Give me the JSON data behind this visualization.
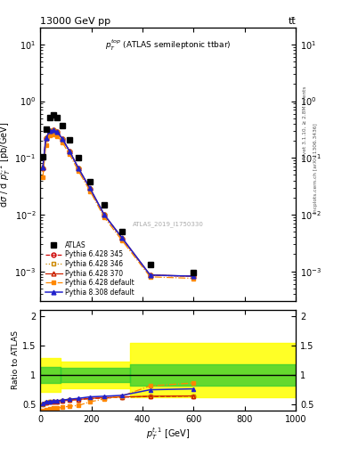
{
  "title_left": "13000 GeV pp",
  "title_right": "tt̅",
  "inner_title": "$p_T^{top}$ (ATLAS semileptonic ttbar)",
  "watermark": "ATLAS_2019_I1750330",
  "right_label_top": "Rivet 3.1.10, ≥ 2.8M events",
  "right_label_bot": "mcplots.cern.ch [arXiv:1306.3436]",
  "ylabel_main": "dσ / d $p_T^{t,1}$ [pb/GeV]",
  "ylabel_ratio": "Ratio to ATLAS",
  "xlabel": "$p_T^{t,1}$ [GeV]",
  "ylim_main_lo": 0.0003,
  "ylim_main_hi": 20,
  "xlim_lo": 0,
  "xlim_hi": 1000,
  "ylim_ratio_lo": 0.4,
  "ylim_ratio_hi": 2.1,
  "atlas_x": [
    10,
    22,
    37,
    52,
    67,
    87,
    115,
    150,
    195,
    250,
    320,
    430,
    600
  ],
  "atlas_y": [
    0.105,
    0.32,
    0.52,
    0.58,
    0.52,
    0.37,
    0.21,
    0.1,
    0.038,
    0.015,
    0.005,
    0.0013,
    0.00095
  ],
  "py6_345_x": [
    10,
    22,
    37,
    52,
    67,
    87,
    115,
    150,
    195,
    250,
    320,
    430,
    600
  ],
  "py6_345_y": [
    0.065,
    0.22,
    0.3,
    0.305,
    0.285,
    0.215,
    0.13,
    0.065,
    0.028,
    0.01,
    0.0038,
    0.00085,
    0.00082
  ],
  "py6_346_y": [
    0.065,
    0.22,
    0.3,
    0.305,
    0.285,
    0.215,
    0.13,
    0.065,
    0.028,
    0.01,
    0.0038,
    0.00085,
    0.00082
  ],
  "py6_370_y": [
    0.068,
    0.22,
    0.3,
    0.305,
    0.285,
    0.215,
    0.13,
    0.065,
    0.029,
    0.01,
    0.0039,
    0.00086,
    0.00082
  ],
  "py6_def_y": [
    0.045,
    0.17,
    0.245,
    0.255,
    0.24,
    0.185,
    0.115,
    0.058,
    0.026,
    0.009,
    0.0035,
    0.0008,
    0.00075
  ],
  "py8_def_y": [
    0.068,
    0.22,
    0.3,
    0.305,
    0.285,
    0.215,
    0.13,
    0.065,
    0.029,
    0.01,
    0.0039,
    0.00086,
    0.00082
  ],
  "py6_345_color": "#cc0000",
  "py6_346_color": "#cc8800",
  "py6_370_color": "#cc2200",
  "py6_def_color": "#ff8800",
  "py8_def_color": "#2222cc",
  "ratio_x": [
    10,
    22,
    37,
    52,
    67,
    87,
    115,
    150,
    195,
    250,
    320,
    430,
    600
  ],
  "ratio_py6_345": [
    0.51,
    0.53,
    0.545,
    0.55,
    0.555,
    0.565,
    0.575,
    0.585,
    0.6,
    0.61,
    0.625,
    0.635,
    0.645
  ],
  "ratio_py6_346": [
    0.51,
    0.53,
    0.545,
    0.55,
    0.555,
    0.565,
    0.575,
    0.585,
    0.6,
    0.61,
    0.625,
    0.635,
    0.645
  ],
  "ratio_py6_370": [
    0.525,
    0.535,
    0.545,
    0.55,
    0.555,
    0.565,
    0.575,
    0.585,
    0.605,
    0.615,
    0.63,
    0.64,
    0.645
  ],
  "ratio_py6_def": [
    0.39,
    0.41,
    0.425,
    0.435,
    0.44,
    0.455,
    0.47,
    0.485,
    0.545,
    0.595,
    0.645,
    0.815,
    0.865
  ],
  "ratio_py8_def": [
    0.515,
    0.545,
    0.555,
    0.56,
    0.565,
    0.575,
    0.59,
    0.605,
    0.63,
    0.64,
    0.655,
    0.75,
    0.765
  ],
  "yb1_x": [
    0,
    80,
    80,
    350,
    350,
    1000
  ],
  "yb1_ylo": [
    0.72,
    0.72,
    0.77,
    0.77,
    0.62,
    0.62
  ],
  "yb1_yhi": [
    1.28,
    1.28,
    1.23,
    1.23,
    1.55,
    1.55
  ],
  "gb1_x": [
    0,
    80,
    80,
    350,
    350,
    1000
  ],
  "gb1_ylo": [
    0.87,
    0.87,
    0.88,
    0.88,
    0.82,
    0.82
  ],
  "gb1_yhi": [
    1.13,
    1.13,
    1.12,
    1.12,
    1.18,
    1.18
  ]
}
